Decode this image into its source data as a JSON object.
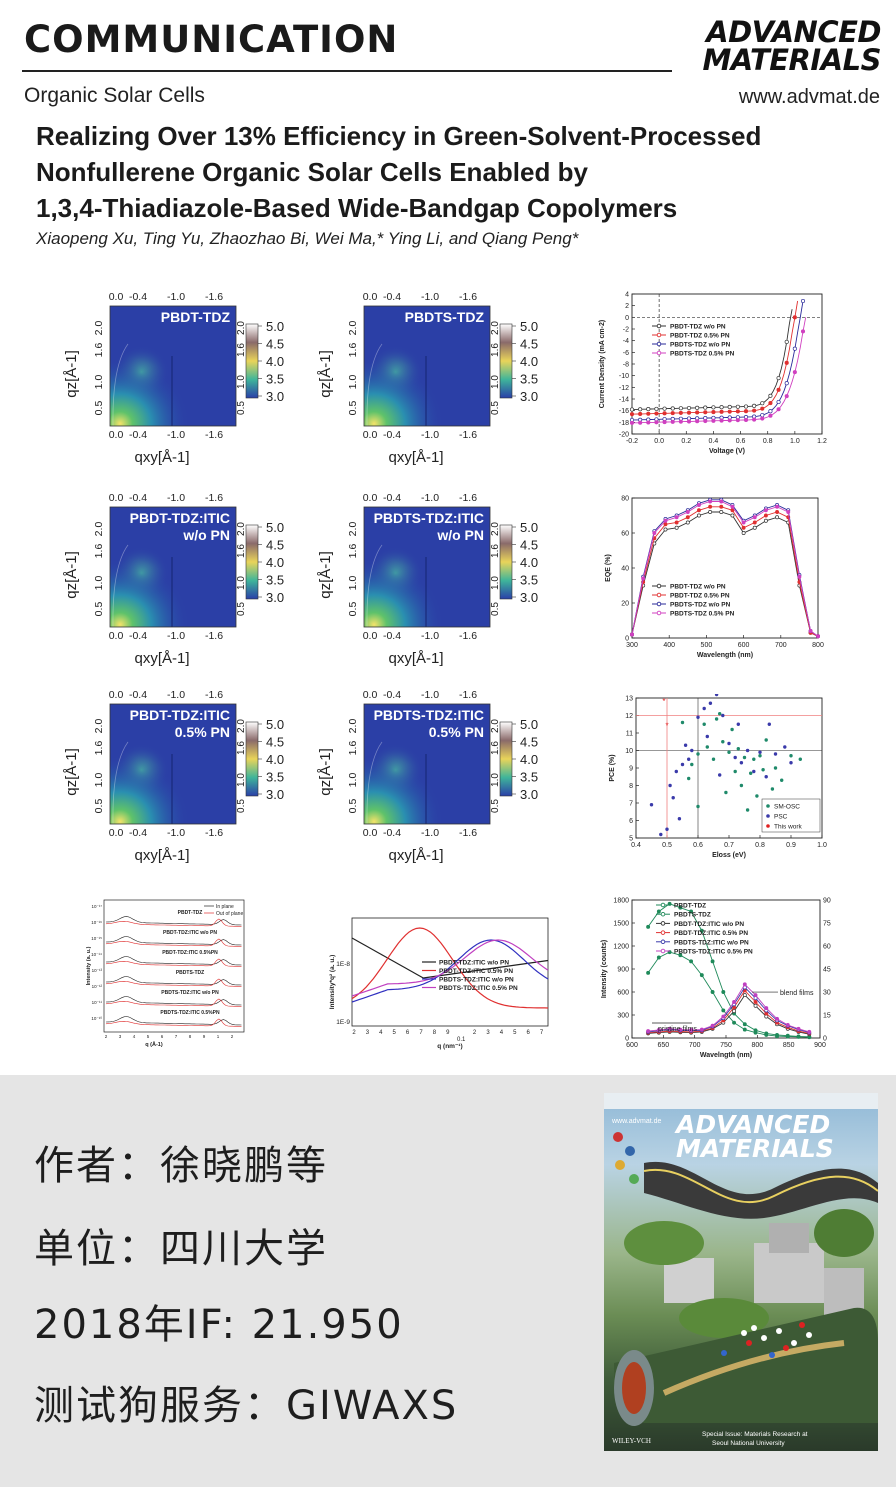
{
  "header": {
    "section": "COMMUNICATION",
    "journal_line1": "ADVANCED",
    "journal_line2": "MATERIALS",
    "topic": "Organic Solar Cells",
    "website": "www.advmat.de"
  },
  "article": {
    "title_line1": "Realizing Over 13% Efficiency in Green-Solvent-Processed",
    "title_line2": "Nonfullerene Organic Solar Cells Enabled by",
    "title_line3": "1,3,4-Thiadiazole-Based Wide-Bandgap Copolymers",
    "authors": "Xiaopeng Xu, Ting Yu, Zhaozhao Bi, Wei Ma,* Ying Li, and Qiang Peng*"
  },
  "giwaxs": {
    "top_ticks": [
      "0.0",
      "-0.4",
      "-1.0",
      "-1.6"
    ],
    "bottom_ticks": [
      "0.0",
      "-0.4",
      "-1.0",
      "-1.6"
    ],
    "y_ticks": [
      "2.0",
      "1.6",
      "1.0",
      "0.5"
    ],
    "right_ticks": [
      "2.0",
      "1.6",
      "1.0",
      "0.5"
    ],
    "xlabel": "qxy[Å-1]",
    "ylabel": "qz[Å-1]",
    "colorbar_ticks": [
      "5.0",
      "4.5",
      "4.0",
      "3.5",
      "3.0"
    ],
    "panels": [
      {
        "label": "PBDT-TDZ",
        "label2": ""
      },
      {
        "label": "PBDTS-TDZ",
        "label2": ""
      },
      {
        "label": "PBDT-TDZ:ITIC",
        "label2": "w/o PN"
      },
      {
        "label": "PBDTS-TDZ:ITIC",
        "label2": "w/o PN"
      },
      {
        "label": "PBDT-TDZ:ITIC",
        "label2": "0.5% PN"
      },
      {
        "label": "PBDTS-TDZ:ITIC",
        "label2": "0.5% PN"
      }
    ]
  },
  "chart_data": [
    {
      "type": "line",
      "xlabel": "Voltage (V)",
      "ylabel": "Current Density (mA cm-2)",
      "xlim": [
        -0.2,
        1.2
      ],
      "ylim": [
        -20,
        4
      ],
      "xticks": [
        "-0.2",
        "0.0",
        "0.2",
        "0.4",
        "0.6",
        "0.8",
        "1.0",
        "1.2"
      ],
      "yticks": [
        "4",
        "0",
        "-4",
        "-8",
        "-12",
        "-16",
        "-20"
      ],
      "yticks_all": [
        "4",
        "2",
        "0",
        "-2",
        "-4",
        "-6",
        "-8",
        "-10",
        "-12",
        "-14",
        "-16",
        "-18",
        "-20"
      ],
      "series": [
        {
          "name": "PBDT-TDZ   w/o PN",
          "color": "#333333",
          "jsc": -15.8,
          "voc": 0.97
        },
        {
          "name": "PBDT-TDZ   0.5% PN",
          "color": "#e03030",
          "jsc": -16.6,
          "voc": 1.0
        },
        {
          "name": "PBDTS-TDZ   w/o PN",
          "color": "#2a2a9a",
          "jsc": -17.6,
          "voc": 1.04
        },
        {
          "name": "PBDTS-TDZ  0.5% PN",
          "color": "#d040c0",
          "jsc": -18.1,
          "voc": 1.08
        }
      ]
    },
    {
      "type": "line",
      "xlabel": "Wavelength (nm)",
      "ylabel": "EQE (%)",
      "xlim": [
        300,
        800
      ],
      "ylim": [
        0,
        80
      ],
      "xticks": [
        "300",
        "400",
        "500",
        "600",
        "700",
        "800"
      ],
      "yticks": [
        "80",
        "60",
        "40",
        "20",
        "0"
      ],
      "x": [
        300,
        330,
        360,
        390,
        420,
        450,
        480,
        510,
        540,
        570,
        600,
        630,
        660,
        690,
        720,
        750,
        780,
        800
      ],
      "series": [
        {
          "name": "PBDT-TDZ     w/o PN",
          "color": "#333333",
          "values": [
            2,
            30,
            54,
            62,
            63,
            66,
            70,
            72,
            72,
            70,
            60,
            63,
            67,
            69,
            66,
            30,
            3,
            1
          ]
        },
        {
          "name": "PBDT-TDZ   0.5% PN",
          "color": "#e03030",
          "values": [
            2,
            32,
            57,
            65,
            66,
            69,
            73,
            75,
            75,
            73,
            63,
            66,
            70,
            72,
            69,
            32,
            3,
            1
          ]
        },
        {
          "name": "PBDTS-TDZ    w/o PN",
          "color": "#2a2a9a",
          "values": [
            2,
            35,
            61,
            68,
            70,
            73,
            77,
            79,
            79,
            76,
            67,
            70,
            74,
            76,
            73,
            36,
            4,
            1
          ]
        },
        {
          "name": "PBDTS-TDZ 0.5% PN",
          "color": "#d040c0",
          "values": [
            2,
            34,
            60,
            67,
            69,
            72,
            76,
            78,
            78,
            75,
            66,
            69,
            73,
            75,
            72,
            35,
            4,
            1
          ]
        }
      ]
    },
    {
      "type": "scatter",
      "xlabel": "Eloss (eV)",
      "ylabel": "PCE (%)",
      "xlim": [
        0.4,
        1.0
      ],
      "ylim": [
        5,
        13
      ],
      "xticks": [
        "0.4",
        "0.5",
        "0.6",
        "0.7",
        "0.8",
        "0.9",
        "1.0"
      ],
      "yticks": [
        "13",
        "12",
        "11",
        "10",
        "9",
        "8",
        "7",
        "6",
        "5"
      ],
      "ref_lines": {
        "x": 0.6,
        "y": 10,
        "y_red": 12,
        "x_red": 0.5
      },
      "series": [
        {
          "name": "SM-OSC",
          "color": "#1f8a6a",
          "points": [
            [
              0.58,
              9.2
            ],
            [
              0.6,
              9.8
            ],
            [
              0.62,
              11.5
            ],
            [
              0.63,
              10.2
            ],
            [
              0.65,
              9.5
            ],
            [
              0.66,
              11.8
            ],
            [
              0.68,
              10.5
            ],
            [
              0.7,
              9.9
            ],
            [
              0.72,
              8.8
            ],
            [
              0.73,
              10.1
            ],
            [
              0.75,
              9.6
            ],
            [
              0.77,
              8.7
            ],
            [
              0.78,
              9.5
            ],
            [
              0.8,
              9.7
            ],
            [
              0.82,
              10.6
            ],
            [
              0.85,
              9.0
            ],
            [
              0.87,
              8.3
            ],
            [
              0.9,
              9.7
            ],
            [
              0.55,
              11.6
            ],
            [
              0.57,
              8.4
            ],
            [
              0.67,
              12.1
            ],
            [
              0.71,
              11.2
            ],
            [
              0.74,
              8.0
            ],
            [
              0.79,
              7.4
            ],
            [
              0.81,
              8.9
            ],
            [
              0.84,
              7.8
            ],
            [
              0.93,
              9.5
            ],
            [
              0.6,
              6.8
            ],
            [
              0.69,
              7.6
            ],
            [
              0.76,
              6.6
            ]
          ]
        },
        {
          "name": "PSC",
          "color": "#3a3aaa",
          "points": [
            [
              0.45,
              6.9
            ],
            [
              0.48,
              5.2
            ],
            [
              0.5,
              5.5
            ],
            [
              0.52,
              7.3
            ],
            [
              0.53,
              8.8
            ],
            [
              0.55,
              9.2
            ],
            [
              0.56,
              10.3
            ],
            [
              0.58,
              10.0
            ],
            [
              0.6,
              11.9
            ],
            [
              0.62,
              12.4
            ],
            [
              0.64,
              12.7
            ],
            [
              0.66,
              13.2
            ],
            [
              0.68,
              12.0
            ],
            [
              0.7,
              10.4
            ],
            [
              0.72,
              9.6
            ],
            [
              0.74,
              9.3
            ],
            [
              0.76,
              10.0
            ],
            [
              0.78,
              8.8
            ],
            [
              0.8,
              9.9
            ],
            [
              0.82,
              8.5
            ],
            [
              0.85,
              9.8
            ],
            [
              0.88,
              10.2
            ],
            [
              0.9,
              9.3
            ],
            [
              0.54,
              6.1
            ],
            [
              0.51,
              8.0
            ],
            [
              0.57,
              9.5
            ],
            [
              0.63,
              10.8
            ],
            [
              0.67,
              8.6
            ],
            [
              0.73,
              11.5
            ],
            [
              0.83,
              11.5
            ]
          ]
        },
        {
          "name": "This work",
          "color": "#e02020",
          "points": [
            [
              0.49,
              12.8
            ],
            [
              0.5,
              11.4
            ]
          ]
        }
      ]
    },
    {
      "type": "line",
      "xlabel": "q (Å-1)",
      "ylabel": "Intensity (a. u.)",
      "yticks": [
        "10⁻¹⁷",
        "10⁻¹⁶",
        "10⁻¹⁵",
        "10⁻¹⁴",
        "10⁻¹³",
        "10⁻¹²",
        "10⁻¹¹",
        "10⁻¹⁰"
      ],
      "xticks": [
        "2",
        "3",
        "4",
        "5",
        "6",
        "7",
        "8",
        "9",
        "1",
        "2"
      ],
      "legend": [
        "In plane",
        "Out of plane"
      ],
      "series": [
        {
          "name": "PBDT-TDZ"
        },
        {
          "name": "PBDT-TDZ:ITIC w/o PN"
        },
        {
          "name": "PBDT-TDZ:ITIC 0.5%PN"
        },
        {
          "name": "PBDTS-TDZ"
        },
        {
          "name": "PBDTS-TDZ:ITIC w/o PN"
        },
        {
          "name": "PBDTS-TDZ:ITIC 0.5%PN"
        }
      ]
    },
    {
      "type": "line",
      "xlabel": "q (nm⁻¹)",
      "ylabel": "Intensity*q² (a. u.)",
      "yticks": [
        "1E-8",
        "1E-9"
      ],
      "xticks": [
        "2",
        "3",
        "4",
        "5",
        "6",
        "7",
        "8",
        "9",
        "0.1",
        "2",
        "3",
        "4",
        "5",
        "6",
        "7"
      ],
      "series": [
        {
          "name": "PBDT-TDZ:ITIC      w/o  PN",
          "color": "#222222"
        },
        {
          "name": "PBDT-TDZ:ITIC     0.5%  PN",
          "color": "#e03030"
        },
        {
          "name": "PBDTS-TDZ:ITIC    w/o  PN",
          "color": "#3030c0"
        },
        {
          "name": "PBDTS-TDZ:ITIC   0.5%  PN",
          "color": "#c040c0"
        }
      ]
    },
    {
      "type": "line",
      "xlabel": "Wavelngth (nm)",
      "ylabel": "Intensity (counts)",
      "xlim": [
        550,
        900
      ],
      "ylim": [
        0,
        1800
      ],
      "xticks": [
        "600",
        "650",
        "700",
        "750",
        "800",
        "850",
        "900"
      ],
      "yticks": [
        "1800",
        "1500",
        "1200",
        "900",
        "600",
        "300",
        "0"
      ],
      "yticks_right": [
        "90",
        "75",
        "60",
        "45",
        "30",
        "15",
        "0"
      ],
      "annotations": [
        "pristine films",
        "blend films"
      ],
      "x": [
        580,
        600,
        620,
        640,
        660,
        680,
        700,
        720,
        740,
        760,
        780,
        800,
        820,
        840,
        860,
        880
      ],
      "series": [
        {
          "name": "PBDT-TDZ",
          "color": "#1f8a5a",
          "values": [
            1450,
            1650,
            1750,
            1700,
            1650,
            1400,
            1000,
            600,
            320,
            180,
            100,
            60,
            40,
            30,
            20,
            15
          ]
        },
        {
          "name": "PBDTS-TDZ",
          "color": "#1f8a5a",
          "values": [
            850,
            1050,
            1120,
            1080,
            1000,
            820,
            600,
            360,
            200,
            110,
            70,
            40,
            25,
            20,
            15,
            10
          ]
        },
        {
          "name": "PBDT-TDZ:ITIC    w/o  PN",
          "color": "#333333",
          "values": [
            60,
            70,
            80,
            75,
            70,
            80,
            120,
            200,
            350,
            560,
            420,
            280,
            180,
            120,
            80,
            50
          ]
        },
        {
          "name": "PBDT-TDZ:ITIC    0.5%  PN",
          "color": "#e03030",
          "values": [
            70,
            80,
            90,
            85,
            80,
            90,
            130,
            230,
            400,
            620,
            470,
            320,
            200,
            140,
            90,
            60
          ]
        },
        {
          "name": "PBDTS-TDZ:ITIC   w/o  PN",
          "color": "#3a3aaa",
          "values": [
            80,
            95,
            110,
            100,
            95,
            100,
            150,
            260,
            440,
            660,
            520,
            360,
            230,
            160,
            110,
            70
          ]
        },
        {
          "name": "PBDTS-TDZ:ITIC 0.5% PN",
          "color": "#c040c0",
          "values": [
            90,
            105,
            120,
            110,
            105,
            110,
            160,
            280,
            470,
            700,
            560,
            390,
            250,
            170,
            120,
            80
          ]
        }
      ]
    }
  ],
  "footer": {
    "line1": "作者：徐晓鹏等",
    "line2": "单位：四川大学",
    "line3": "2018年IF: 21.950",
    "line4": "测试狗服务：GIWAXS"
  },
  "cover": {
    "website": "www.advmat.de",
    "title_line1": "ADVANCED",
    "title_line2": "MATERIALS",
    "special_issue_line1": "Special Issue: Materials Research at",
    "special_issue_line2": "Seoul National University",
    "publisher": "WILEY-VCH"
  }
}
